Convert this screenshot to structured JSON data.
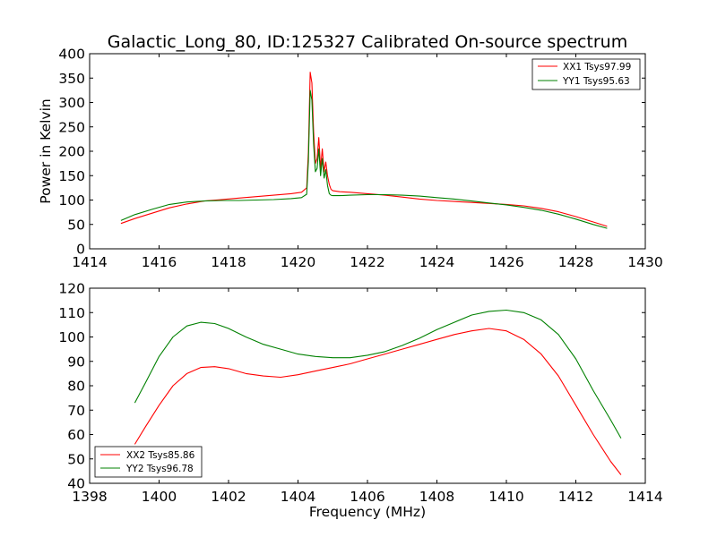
{
  "figure": {
    "title": "Galactic_Long_80, ID:125327 Calibrated On-source spectrum"
  },
  "chart_data": [
    {
      "type": "line",
      "title": "Galactic_Long_80, ID:125327 Calibrated On-source spectrum",
      "xlabel": "",
      "ylabel": "Power in Kelvin",
      "xlim": [
        1414,
        1430
      ],
      "ylim": [
        0,
        400
      ],
      "xticks": [
        1414,
        1416,
        1418,
        1420,
        1422,
        1424,
        1426,
        1428,
        1430
      ],
      "yticks": [
        0,
        50,
        100,
        150,
        200,
        250,
        300,
        350,
        400
      ],
      "grid": false,
      "legend_position": "top-right",
      "series": [
        {
          "name": "XX1 Tsys97.99",
          "color": "#ff0000",
          "x": [
            1414.9,
            1415.3,
            1415.8,
            1416.3,
            1416.8,
            1417.3,
            1417.8,
            1418.3,
            1418.8,
            1419.3,
            1419.8,
            1420.1,
            1420.25,
            1420.3,
            1420.35,
            1420.4,
            1420.45,
            1420.5,
            1420.55,
            1420.6,
            1420.65,
            1420.7,
            1420.75,
            1420.8,
            1420.85,
            1420.9,
            1420.95,
            1421.0,
            1421.2,
            1421.5,
            1422.0,
            1422.5,
            1423.0,
            1423.5,
            1424.0,
            1424.5,
            1425.0,
            1425.5,
            1426.0,
            1426.5,
            1427.0,
            1427.5,
            1428.0,
            1428.5,
            1428.9
          ],
          "y": [
            52,
            62,
            73,
            84,
            92,
            98,
            101,
            104,
            107,
            110,
            113,
            116,
            125,
            200,
            362,
            340,
            240,
            175,
            185,
            228,
            165,
            205,
            158,
            178,
            150,
            132,
            122,
            119,
            117,
            116,
            113,
            110,
            106,
            102,
            99,
            97,
            95,
            93,
            91,
            88,
            83,
            76,
            66,
            55,
            46
          ]
        },
        {
          "name": "YY1 Tsys95.63",
          "color": "#008000",
          "x": [
            1414.9,
            1415.3,
            1415.8,
            1416.3,
            1416.8,
            1417.3,
            1417.8,
            1418.3,
            1418.8,
            1419.3,
            1419.8,
            1420.1,
            1420.25,
            1420.3,
            1420.35,
            1420.4,
            1420.45,
            1420.5,
            1420.55,
            1420.6,
            1420.65,
            1420.7,
            1420.75,
            1420.8,
            1420.85,
            1420.9,
            1420.95,
            1421.0,
            1421.2,
            1421.5,
            1422.0,
            1422.5,
            1423.0,
            1423.5,
            1424.0,
            1424.5,
            1425.0,
            1425.5,
            1426.0,
            1426.5,
            1427.0,
            1427.5,
            1428.0,
            1428.5,
            1428.9
          ],
          "y": [
            58,
            70,
            81,
            91,
            96,
            98,
            99,
            99,
            100,
            101,
            103,
            105,
            112,
            180,
            325,
            305,
            215,
            158,
            165,
            205,
            150,
            185,
            145,
            162,
            130,
            113,
            110,
            109,
            109,
            110,
            111,
            111,
            110,
            108,
            105,
            102,
            98,
            94,
            90,
            85,
            79,
            71,
            61,
            50,
            42
          ]
        }
      ]
    },
    {
      "type": "line",
      "title": "",
      "xlabel": "Frequency (MHz)",
      "ylabel": "",
      "xlim": [
        1398,
        1414
      ],
      "ylim": [
        40,
        120
      ],
      "xticks": [
        1398,
        1400,
        1402,
        1404,
        1406,
        1408,
        1410,
        1412,
        1414
      ],
      "yticks": [
        40,
        50,
        60,
        70,
        80,
        90,
        100,
        110,
        120
      ],
      "grid": false,
      "legend_position": "bottom-left",
      "series": [
        {
          "name": "XX2 Tsys85.86",
          "color": "#ff0000",
          "x": [
            1399.3,
            1399.6,
            1400.0,
            1400.4,
            1400.8,
            1401.2,
            1401.6,
            1402.0,
            1402.5,
            1403.0,
            1403.5,
            1404.0,
            1404.5,
            1405.0,
            1405.5,
            1406.0,
            1406.5,
            1407.0,
            1407.5,
            1408.0,
            1408.5,
            1409.0,
            1409.5,
            1410.0,
            1410.5,
            1411.0,
            1411.5,
            1412.0,
            1412.5,
            1413.0,
            1413.3
          ],
          "y": [
            56,
            63,
            72,
            80,
            85,
            87.5,
            87.8,
            87,
            85,
            84,
            83.5,
            84.5,
            86,
            87.5,
            89,
            91,
            93,
            95,
            97,
            99,
            101,
            102.5,
            103.5,
            102.5,
            99,
            93,
            84,
            72,
            60,
            49,
            43.5
          ]
        },
        {
          "name": "YY2 Tsys96.78",
          "color": "#008000",
          "x": [
            1399.3,
            1399.6,
            1400.0,
            1400.4,
            1400.8,
            1401.2,
            1401.6,
            1402.0,
            1402.5,
            1403.0,
            1403.5,
            1404.0,
            1404.5,
            1405.0,
            1405.5,
            1406.0,
            1406.5,
            1407.0,
            1407.5,
            1408.0,
            1408.5,
            1409.0,
            1409.5,
            1410.0,
            1410.5,
            1411.0,
            1411.5,
            1412.0,
            1412.5,
            1413.0,
            1413.3
          ],
          "y": [
            73,
            81,
            92,
            100,
            104.5,
            106,
            105.5,
            103.5,
            100,
            97,
            95,
            93,
            92,
            91.5,
            91.5,
            92.5,
            94,
            96.5,
            99.5,
            103,
            106,
            109,
            110.5,
            111,
            110,
            107,
            101,
            91,
            78,
            66,
            58.5
          ]
        }
      ]
    }
  ]
}
